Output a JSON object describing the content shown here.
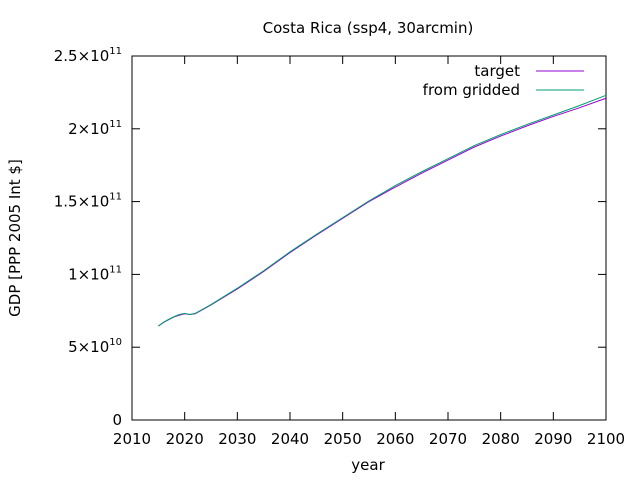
{
  "chart_data": {
    "type": "line",
    "title": "Costa Rica (ssp4, 30arcmin)",
    "xlabel": "year",
    "ylabel": "GDP [PPP 2005 Int $]",
    "xlim": [
      2010,
      2100
    ],
    "ylim": [
      0,
      250000000000
    ],
    "x_ticks": [
      2010,
      2020,
      2030,
      2040,
      2050,
      2060,
      2070,
      2080,
      2090,
      2100
    ],
    "y_ticks": [
      {
        "value": 0,
        "mantissa": "0",
        "exp": ""
      },
      {
        "value": 50000000000,
        "mantissa": "5×10",
        "exp": "10"
      },
      {
        "value": 100000000000,
        "mantissa": "1×10",
        "exp": "11"
      },
      {
        "value": 150000000000,
        "mantissa": "1.5×10",
        "exp": "11"
      },
      {
        "value": 200000000000,
        "mantissa": "2×10",
        "exp": "11"
      },
      {
        "value": 250000000000,
        "mantissa": "2.5×10",
        "exp": "11"
      }
    ],
    "grid": false,
    "legend_position": "top-right",
    "series": [
      {
        "name": "target",
        "color": "#9400d3",
        "x": [
          2015,
          2016,
          2017,
          2018,
          2019,
          2020,
          2021,
          2022,
          2025,
          2030,
          2035,
          2040,
          2045,
          2050,
          2055,
          2060,
          2065,
          2070,
          2075,
          2080,
          2085,
          2090,
          2095,
          2100
        ],
        "y": [
          64500000000,
          67000000000,
          69000000000,
          70800000000,
          72000000000,
          73000000000,
          72500000000,
          73000000000,
          79000000000,
          90000000000,
          102000000000,
          115000000000,
          127000000000,
          138500000000,
          150000000000,
          160000000000,
          169500000000,
          178500000000,
          187500000000,
          195000000000,
          202000000000,
          208500000000,
          214500000000,
          221000000000
        ]
      },
      {
        "name": "from gridded",
        "color": "#009e73",
        "x": [
          2015,
          2016,
          2017,
          2018,
          2019,
          2020,
          2021,
          2022,
          2025,
          2030,
          2035,
          2040,
          2045,
          2050,
          2055,
          2060,
          2065,
          2070,
          2075,
          2080,
          2085,
          2090,
          2095,
          2100
        ],
        "y": [
          64500000000,
          67200000000,
          69200000000,
          71000000000,
          72500000000,
          73200000000,
          72500000000,
          73200000000,
          79300000000,
          90500000000,
          102500000000,
          115500000000,
          127500000000,
          139000000000,
          150500000000,
          161000000000,
          170500000000,
          179500000000,
          188500000000,
          196000000000,
          203000000000,
          209500000000,
          216000000000,
          223000000000
        ]
      }
    ]
  }
}
